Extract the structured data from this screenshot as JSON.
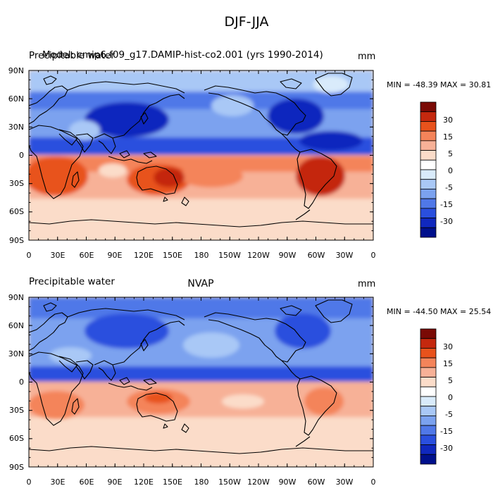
{
  "title": "DJF-JJA",
  "panels": [
    {
      "id": "top",
      "left_label": "Precipitable water",
      "center_label": "b.e21.BHIST.f09_g17.CMIP6-hist-co2.001 (yrs 1990-2014)",
      "overprint_label": "Model: cmip6.f09_g17.DAMIP-hist-co2.001 (yrs 1990-2014)",
      "units": "mm",
      "min_label": "MIN = -48.39",
      "max_label": "MAX =  30.81"
    },
    {
      "id": "bottom",
      "left_label": "Precipitable water",
      "center_label": "NVAP",
      "units": "mm",
      "min_label": "MIN = -44.50",
      "max_label": "MAX =  25.54"
    }
  ],
  "y_ticks": [
    "90N",
    "60N",
    "30N",
    "0",
    "30S",
    "60S",
    "90S"
  ],
  "x_ticks": [
    "0",
    "30E",
    "60E",
    "90E",
    "120E",
    "150E",
    "180",
    "150W",
    "120W",
    "90W",
    "60W",
    "30W",
    "0"
  ],
  "colorbar": {
    "labels": [
      "30",
      "15",
      "5",
      "0",
      "-5",
      "-15",
      "-30"
    ],
    "colors": [
      "#7a0a05",
      "#c4280e",
      "#e8521c",
      "#f4845a",
      "#f7b197",
      "#fbdcc9",
      "#ffffff",
      "#d9ebfb",
      "#a9c8f6",
      "#7ba2ef",
      "#5078e8",
      "#2a4fde",
      "#1028be",
      "#00108c"
    ]
  },
  "legend_placement": "right of each map"
}
